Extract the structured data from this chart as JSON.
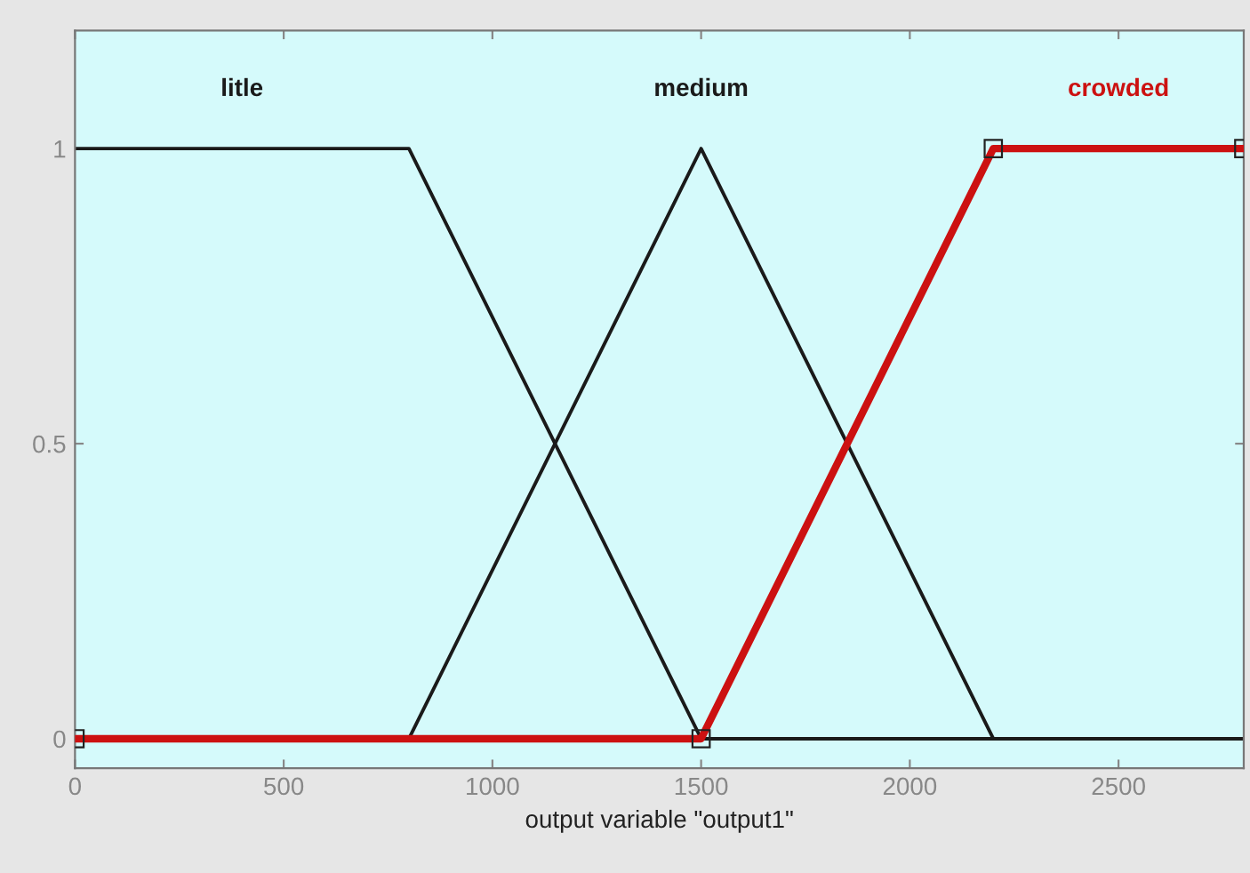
{
  "chart_data": {
    "type": "line",
    "xlabel": "output variable \"output1\"",
    "xlim": [
      0,
      2800
    ],
    "ylim": [
      -0.05,
      1.2
    ],
    "xticks": [
      0,
      500,
      1000,
      1500,
      2000,
      2500
    ],
    "yticks": [
      0,
      0.5,
      1
    ],
    "grid": false,
    "legend": false,
    "series": [
      {
        "name": "litle",
        "color": "#1a1a1a",
        "x": [
          0,
          800,
          1500,
          2800
        ],
        "values": [
          1,
          1,
          0,
          0
        ]
      },
      {
        "name": "medium",
        "color": "#1a1a1a",
        "x": [
          0,
          800,
          1500,
          2200,
          2800
        ],
        "values": [
          0,
          0,
          1,
          0,
          0
        ]
      },
      {
        "name": "crowded",
        "color": "#cc1111",
        "x": [
          0,
          1500,
          2200,
          2800
        ],
        "values": [
          0,
          0,
          1,
          1
        ],
        "marker": "square"
      }
    ]
  }
}
